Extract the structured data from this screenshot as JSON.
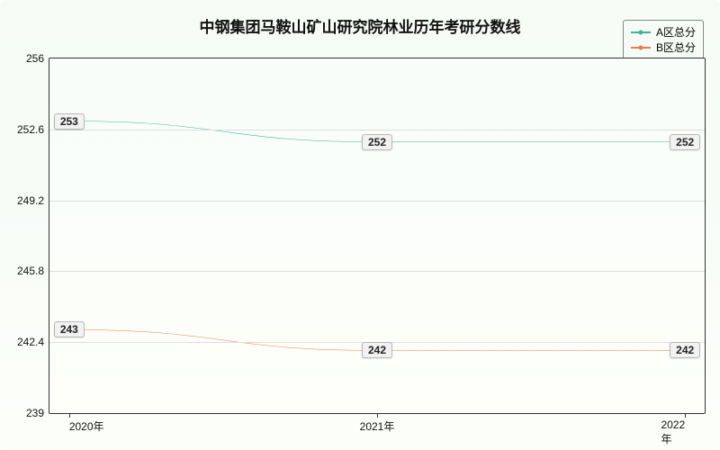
{
  "chart": {
    "type": "line",
    "title": "中钢集团马鞍山矿山研究院林业历年考研分数线",
    "title_fontsize": 17,
    "title_color": "#111111",
    "background_gradient": [
      "#f5fbf5",
      "#fcfefa"
    ],
    "plot_border_color": "#333333",
    "grid_color": "#dddddd",
    "font_family": "Microsoft YaHei",
    "label_fontsize": 12,
    "line_width": 2,
    "marker_size": 7,
    "ylim": [
      239,
      256
    ],
    "yticks": [
      239,
      242.4,
      245.8,
      249.2,
      252.6,
      256
    ],
    "xticks": [
      "2020年",
      "2021年",
      "2022年"
    ],
    "x_positions_pct": [
      3,
      50,
      97
    ],
    "legend": {
      "position": "top-right",
      "border_color": "#888888",
      "items": [
        {
          "label": "A区总分",
          "color": "#3cb39b"
        },
        {
          "label": "B区总分",
          "color": "#e77c4f"
        }
      ]
    },
    "series": [
      {
        "name": "A区总分",
        "color": "#3cb39b",
        "values": [
          253,
          252,
          252
        ],
        "point_labels": [
          "253",
          "252",
          "252"
        ],
        "label_box_bg": "#f2f2f2",
        "label_box_border": "#b8b8b8"
      },
      {
        "name": "B区总分",
        "color": "#e77c4f",
        "values": [
          243,
          242,
          242
        ],
        "point_labels": [
          "243",
          "242",
          "242"
        ],
        "label_box_bg": "#f2f2f2",
        "label_box_border": "#b8b8b8"
      }
    ]
  }
}
